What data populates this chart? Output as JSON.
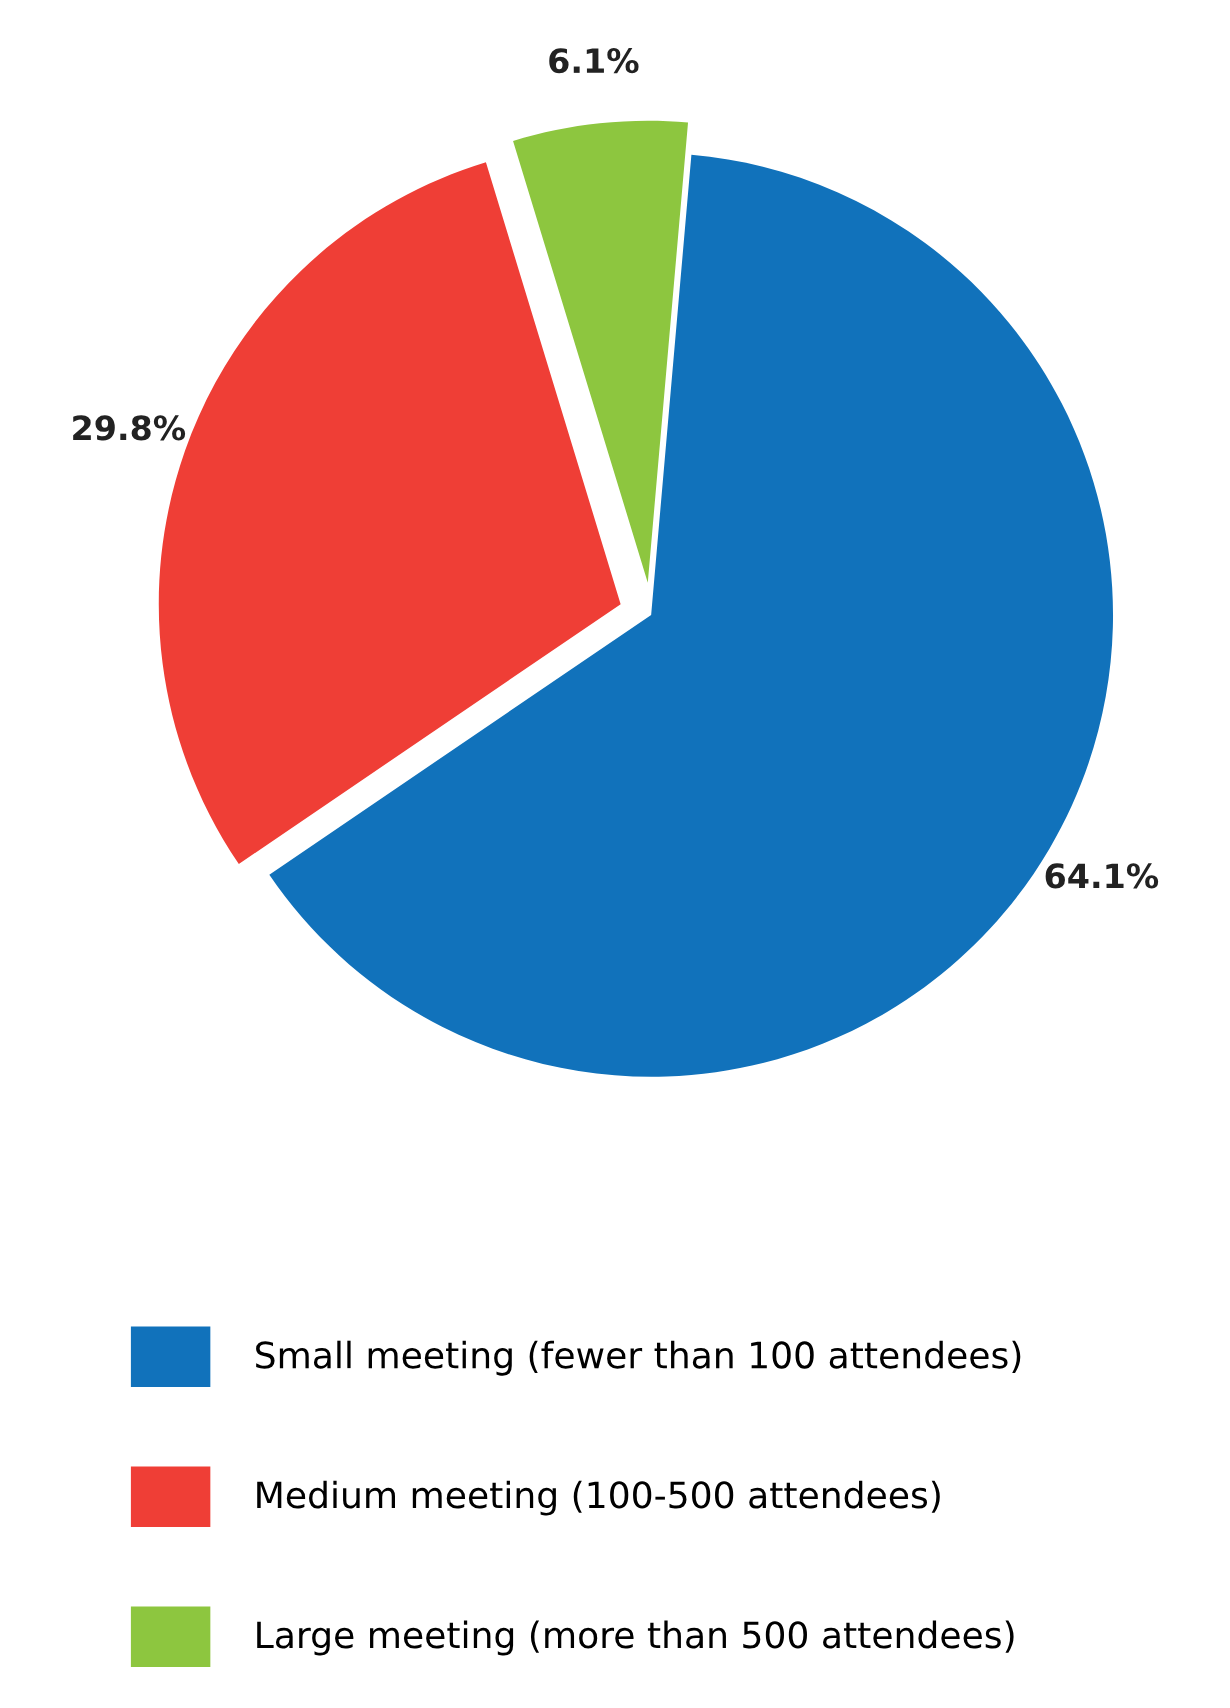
{
  "chart_data": {
    "type": "pie",
    "categories": [
      "Small meeting (fewer than 100 attendees)",
      "Medium meeting (100-500 attendees)",
      "Large meeting (more than 500 attendees)"
    ],
    "values": [
      64.1,
      29.8,
      6.1
    ],
    "value_labels": [
      "64.1%",
      "29.8%",
      "6.1%"
    ],
    "colors": [
      "#1172bb",
      "#ef3e36",
      "#8dc63f"
    ],
    "legend": "bottom"
  }
}
